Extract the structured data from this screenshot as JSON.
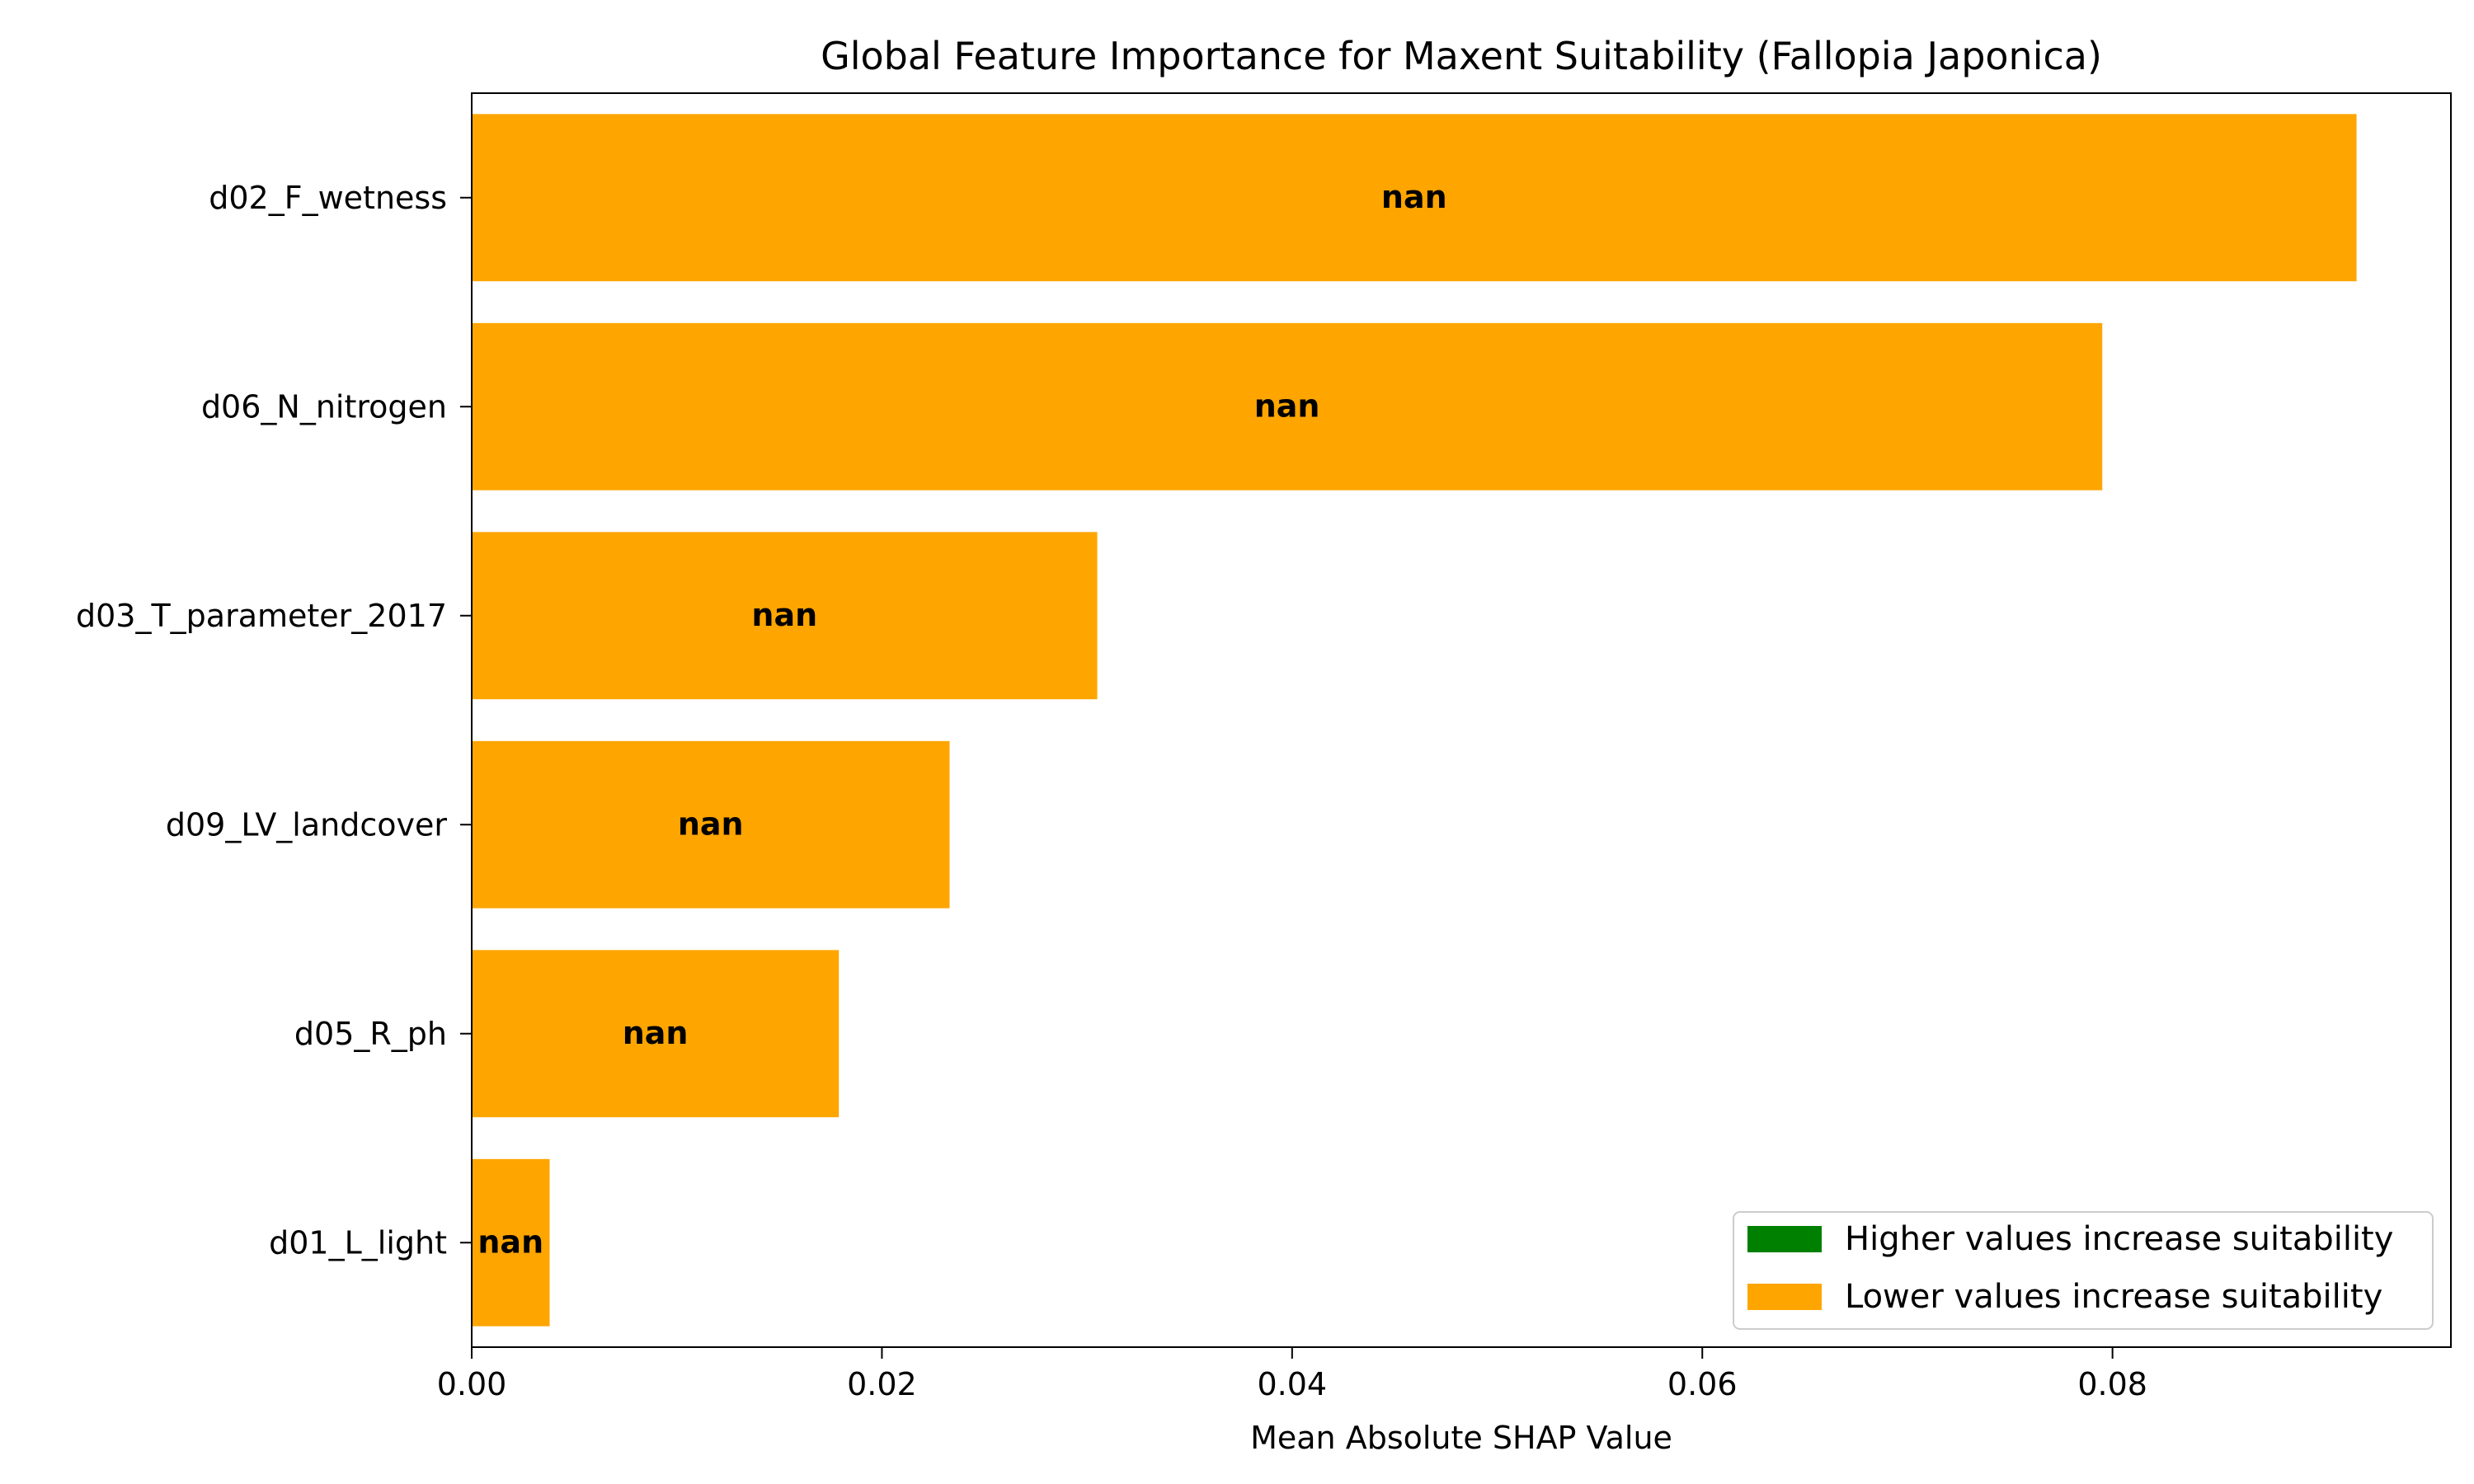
{
  "chart_data": {
    "type": "bar",
    "orientation": "horizontal",
    "title": "Global Feature Importance for Maxent Suitability (Fallopia Japonica)",
    "xlabel": "Mean Absolute SHAP Value",
    "ylabel": "",
    "xlim": [
      0,
      0.0965
    ],
    "x_ticks": [
      0.0,
      0.02,
      0.04,
      0.06,
      0.08
    ],
    "x_tick_labels": [
      "0.00",
      "0.02",
      "0.04",
      "0.06",
      "0.08"
    ],
    "categories": [
      "d02_F_wetness",
      "d06_N_nitrogen",
      "d03_T_parameter_2017",
      "d09_LV_landcover",
      "d05_R_ph",
      "d01_L_light"
    ],
    "values": [
      0.0919,
      0.0795,
      0.0305,
      0.0233,
      0.0179,
      0.0038
    ],
    "bar_labels": [
      "nan",
      "nan",
      "nan",
      "nan",
      "nan",
      "nan"
    ],
    "bar_colors": [
      "#FFA500",
      "#FFA500",
      "#FFA500",
      "#FFA500",
      "#FFA500",
      "#FFA500"
    ],
    "grid": false,
    "legend": {
      "placement": "lower-right",
      "entries": [
        {
          "label": "Higher values increase suitability",
          "color": "#008000"
        },
        {
          "label": "Lower values increase suitability",
          "color": "#FFA500"
        }
      ]
    }
  }
}
